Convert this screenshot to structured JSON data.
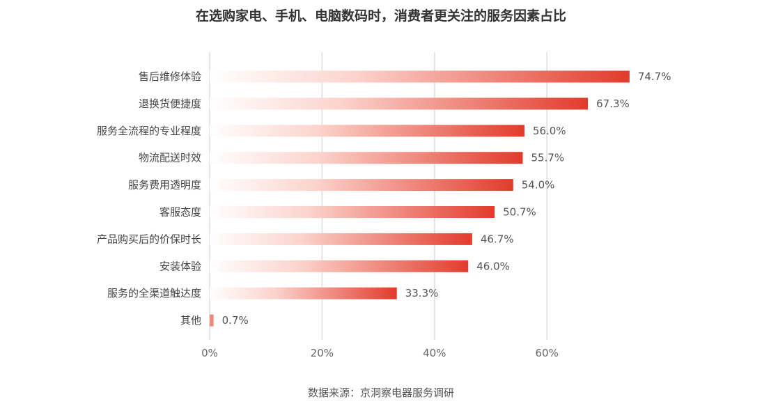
{
  "chart_data": {
    "type": "bar",
    "orientation": "horizontal",
    "title": "在选购家电、手机、电脑数码时，消费者更关注的服务因素占比",
    "source": "数据来源：京洞察电器服务调研",
    "categories": [
      "售后维修体验",
      "退换货便捷度",
      "服务全流程的专业程度",
      "物流配送时效",
      "服务费用透明度",
      "客服态度",
      "产品购买后的价保时长",
      "安装体验",
      "服务的全渠道触达度",
      "其他"
    ],
    "values": [
      74.7,
      67.3,
      56.0,
      55.7,
      54.0,
      50.7,
      46.7,
      46.0,
      33.3,
      0.7
    ],
    "value_labels": [
      "74.7%",
      "67.3%",
      "56.0%",
      "55.7%",
      "54.0%",
      "50.7%",
      "46.7%",
      "46.0%",
      "33.3%",
      "0.7%"
    ],
    "x_ticks": [
      0,
      20,
      40,
      60
    ],
    "x_tick_labels": [
      "0%",
      "20%",
      "40%",
      "60%"
    ],
    "xlim": [
      0,
      80
    ],
    "grid": "vertical",
    "legend": "none",
    "colors": {
      "bar_end": "#e23b2c",
      "bar_start": "#ffffff",
      "grid": "#dddddd"
    }
  }
}
